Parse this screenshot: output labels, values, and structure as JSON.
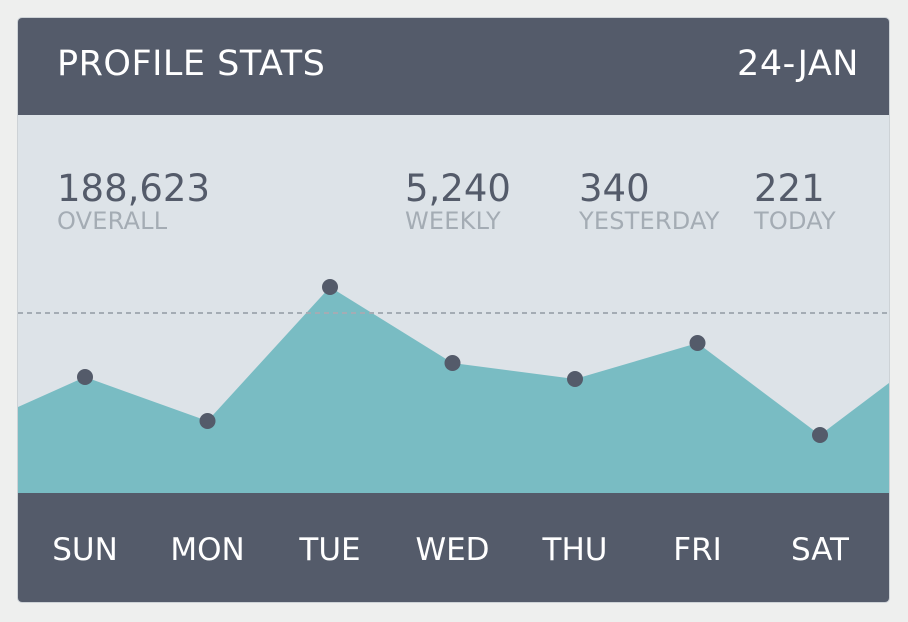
{
  "header": {
    "title": "PROFILE STATS",
    "date": "24-JAN"
  },
  "stats": [
    {
      "value": "188,623",
      "label": "OVERALL"
    },
    {
      "value": "5,240",
      "label": "WEEKLY"
    },
    {
      "value": "340",
      "label": "YESTERDAY"
    },
    {
      "value": "221",
      "label": "TODAY"
    }
  ],
  "colors": {
    "header_bg": "#545b6a",
    "plot_bg": "#dde3e8",
    "area_fill": "#79bcc3",
    "point": "#545b6a",
    "reference_line": "#a4acb4"
  },
  "chart_data": {
    "type": "area",
    "categories": [
      "SUN",
      "MON",
      "TUE",
      "WED",
      "THU",
      "FRI",
      "SAT"
    ],
    "values": [
      58,
      36,
      103,
      65,
      57,
      75,
      29
    ],
    "edge_values": {
      "left": 43,
      "right": 55
    },
    "reference_value": 90,
    "ylim": [
      0,
      200
    ],
    "grid": false,
    "legend": "none",
    "title": "",
    "xlabel": "",
    "ylabel": ""
  }
}
